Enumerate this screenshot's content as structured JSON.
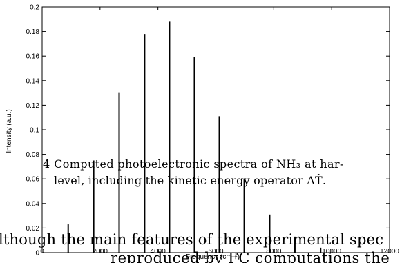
{
  "chart_data": {
    "type": "bar",
    "xlabel": "Frequency (cm",
    "xlabel_superscript": "−1",
    "xlabel_close": ")",
    "ylabel": "Intensity (a.u.)",
    "xlim": [
      0,
      12000
    ],
    "ylim": [
      0,
      0.2
    ],
    "x_ticks": [
      "0",
      "2000",
      "4000",
      "6000",
      "8000",
      "10000",
      "12000"
    ],
    "y_ticks": [
      "0",
      "0.02",
      "0.04",
      "0.06",
      "0.08",
      "0.1",
      "0.12",
      "0.14",
      "0.16",
      "0.18",
      "0.2"
    ],
    "grid": false,
    "x": [
      900,
      1780,
      2660,
      3540,
      4400,
      5260,
      6120,
      6980,
      7860,
      8730,
      9620
    ],
    "values": [
      0.023,
      0.075,
      0.13,
      0.178,
      0.188,
      0.159,
      0.111,
      0.06,
      0.031,
      0.013,
      0.004
    ]
  },
  "caption": {
    "line1": "4  Computed  photoelectronic  spectra  of  NH₃  at  har-",
    "line2": "level, including the kinetic energy operator ΔT̂."
  },
  "body_text": {
    "line1": "lthough the main features of the experimental spec",
    "line2": "reproduced  by  FC  computations  the"
  }
}
